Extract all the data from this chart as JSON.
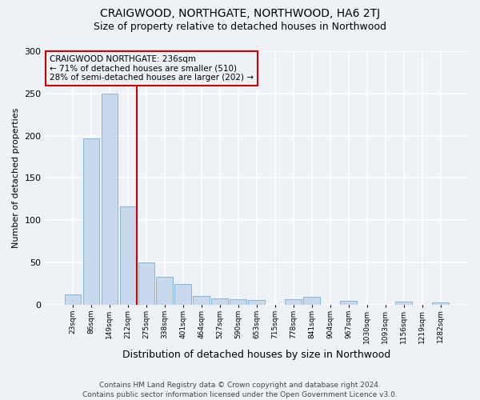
{
  "title": "CRAIGWOOD, NORTHGATE, NORTHWOOD, HA6 2TJ",
  "subtitle": "Size of property relative to detached houses in Northwood",
  "xlabel": "Distribution of detached houses by size in Northwood",
  "ylabel": "Number of detached properties",
  "bar_labels": [
    "23sqm",
    "86sqm",
    "149sqm",
    "212sqm",
    "275sqm",
    "338sqm",
    "401sqm",
    "464sqm",
    "527sqm",
    "590sqm",
    "653sqm",
    "715sqm",
    "778sqm",
    "841sqm",
    "904sqm",
    "967sqm",
    "1030sqm",
    "1093sqm",
    "1156sqm",
    "1219sqm",
    "1282sqm"
  ],
  "bar_heights": [
    12,
    197,
    250,
    116,
    50,
    33,
    25,
    10,
    8,
    7,
    6,
    0,
    7,
    9,
    0,
    5,
    0,
    0,
    4,
    0,
    3
  ],
  "bar_color": "#c8d9ee",
  "bar_edge_color": "#7aadd4",
  "vline_x": 3.5,
  "vline_color": "#cc0000",
  "annotation_box_text": "CRAIGWOOD NORTHGATE: 236sqm\n← 71% of detached houses are smaller (510)\n28% of semi-detached houses are larger (202) →",
  "annotation_box_color": "#cc0000",
  "ylim": [
    0,
    300
  ],
  "yticks": [
    0,
    50,
    100,
    150,
    200,
    250,
    300
  ],
  "footer_line1": "Contains HM Land Registry data © Crown copyright and database right 2024.",
  "footer_line2": "Contains public sector information licensed under the Open Government Licence v3.0.",
  "background_color": "#eef2f7",
  "plot_background": "#eef2f7",
  "grid_color": "#ffffff",
  "title_fontsize": 10,
  "subtitle_fontsize": 9,
  "annotation_fontsize": 7.5,
  "footer_fontsize": 6.5,
  "ylabel_fontsize": 8,
  "xlabel_fontsize": 9
}
